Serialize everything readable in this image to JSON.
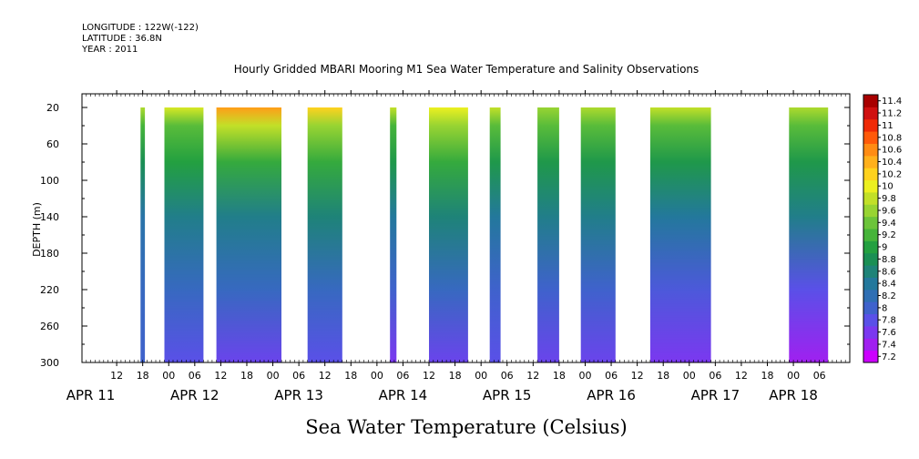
{
  "header": {
    "longitude": "LONGITUDE : 122W(-122)",
    "latitude": "LATITUDE : 36.8N",
    "year": "YEAR : 2011"
  },
  "chart_data": {
    "type": "heatmap",
    "title": "Hourly Gridded MBARI Mooring M1 Sea Water Temperature and Salinity Observations",
    "xlabel": "Sea Water Temperature (Celsius)",
    "ylabel": "DEPTH (m)",
    "ylim": [
      300,
      5
    ],
    "y_ticks": [
      20,
      60,
      100,
      140,
      180,
      220,
      260,
      300
    ],
    "x_hour_ticks": [
      {
        "t": 12,
        "label": "12"
      },
      {
        "t": 18,
        "label": "18"
      },
      {
        "t": 24,
        "label": "00"
      },
      {
        "t": 30,
        "label": "06"
      },
      {
        "t": 36,
        "label": "12"
      },
      {
        "t": 42,
        "label": "18"
      },
      {
        "t": 48,
        "label": "00"
      },
      {
        "t": 54,
        "label": "06"
      },
      {
        "t": 60,
        "label": "12"
      },
      {
        "t": 66,
        "label": "18"
      },
      {
        "t": 72,
        "label": "00"
      },
      {
        "t": 78,
        "label": "06"
      },
      {
        "t": 84,
        "label": "12"
      },
      {
        "t": 90,
        "label": "18"
      },
      {
        "t": 96,
        "label": "00"
      },
      {
        "t": 102,
        "label": "06"
      },
      {
        "t": 108,
        "label": "12"
      },
      {
        "t": 114,
        "label": "18"
      },
      {
        "t": 120,
        "label": "00"
      },
      {
        "t": 126,
        "label": "06"
      },
      {
        "t": 132,
        "label": "12"
      },
      {
        "t": 138,
        "label": "18"
      },
      {
        "t": 144,
        "label": "00"
      },
      {
        "t": 150,
        "label": "06"
      },
      {
        "t": 156,
        "label": "12"
      },
      {
        "t": 162,
        "label": "18"
      },
      {
        "t": 168,
        "label": "00"
      },
      {
        "t": 174,
        "label": "06"
      }
    ],
    "date_labels": [
      {
        "t": 6,
        "label": "APR 11"
      },
      {
        "t": 30,
        "label": "APR 12"
      },
      {
        "t": 54,
        "label": "APR 13"
      },
      {
        "t": 78,
        "label": "APR 14"
      },
      {
        "t": 102,
        "label": "APR 15"
      },
      {
        "t": 126,
        "label": "APR 16"
      },
      {
        "t": 150,
        "label": "APR 17"
      },
      {
        "t": 168,
        "label": "APR 18"
      }
    ],
    "colorbar": {
      "levels": [
        7.2,
        7.4,
        7.6,
        7.8,
        8,
        8.2,
        8.4,
        8.6,
        8.8,
        9,
        9.2,
        9.4,
        9.6,
        9.8,
        10,
        10.2,
        10.4,
        10.6,
        10.8,
        11,
        11.2,
        11.4
      ],
      "labels": [
        "7.2",
        "7.4",
        "7.6",
        "7.8",
        "8",
        "8.2",
        "8.4",
        "8.6",
        "8.8",
        "9",
        "9.2",
        "9.4",
        "9.6",
        "9.8",
        "10",
        "10.2",
        "10.4",
        "10.6",
        "10.8",
        "11",
        "11.2",
        "11.4"
      ],
      "colors": [
        "#cc00ff",
        "#a020f0",
        "#7b38f0",
        "#5a50e8",
        "#3f62cc",
        "#2f6fb4",
        "#23789c",
        "#1e8378",
        "#1a8f54",
        "#23a040",
        "#46b43a",
        "#6cc43a",
        "#98d432",
        "#c2e028",
        "#ecf020",
        "#ffd21e",
        "#ffb01c",
        "#ff8c14",
        "#ff5a0a",
        "#ef2a06",
        "#d01010",
        "#a80000"
      ]
    },
    "time_axis": "hours from APR 11 00:00",
    "data_blocks": [
      {
        "t_start": 17.5,
        "t_end": 18.5,
        "surface": 9.7,
        "t40": 9.2,
        "t80": 8.8,
        "t140": 8.3,
        "t220": 8.1,
        "t300": 8.0
      },
      {
        "t_start": 23,
        "t_end": 32,
        "surface": 9.9,
        "t40": 9.3,
        "t80": 9.0,
        "t140": 8.5,
        "t220": 8.1,
        "t300": 7.8
      },
      {
        "t_start": 35,
        "t_end": 50,
        "surface": 10.5,
        "t40": 9.8,
        "t80": 9.1,
        "t140": 8.5,
        "t220": 8.1,
        "t300": 7.7
      },
      {
        "t_start": 56,
        "t_end": 64,
        "surface": 10.2,
        "t40": 9.6,
        "t80": 9.1,
        "t140": 8.6,
        "t220": 8.1,
        "t300": 7.8
      },
      {
        "t_start": 75,
        "t_end": 76.5,
        "surface": 9.8,
        "t40": 9.2,
        "t80": 8.9,
        "t140": 8.4,
        "t220": 8.0,
        "t300": 7.6
      },
      {
        "t_start": 84,
        "t_end": 93,
        "surface": 10.0,
        "t40": 9.6,
        "t80": 9.1,
        "t140": 8.6,
        "t220": 8.1,
        "t300": 7.7
      },
      {
        "t_start": 98,
        "t_end": 100.5,
        "surface": 9.8,
        "t40": 9.3,
        "t80": 8.9,
        "t140": 8.4,
        "t220": 8.0,
        "t300": 7.8
      },
      {
        "t_start": 109,
        "t_end": 114,
        "surface": 9.6,
        "t40": 9.3,
        "t80": 8.9,
        "t140": 8.5,
        "t220": 8.0,
        "t300": 7.7
      },
      {
        "t_start": 119,
        "t_end": 127,
        "surface": 9.7,
        "t40": 9.3,
        "t80": 8.9,
        "t140": 8.5,
        "t220": 8.0,
        "t300": 7.7
      },
      {
        "t_start": 135,
        "t_end": 149,
        "surface": 9.8,
        "t40": 9.3,
        "t80": 8.9,
        "t140": 8.4,
        "t220": 7.9,
        "t300": 7.6
      },
      {
        "t_start": 167,
        "t_end": 176,
        "surface": 9.7,
        "t40": 9.3,
        "t80": 8.9,
        "t140": 8.5,
        "t220": 7.8,
        "t300": 7.4
      }
    ]
  }
}
